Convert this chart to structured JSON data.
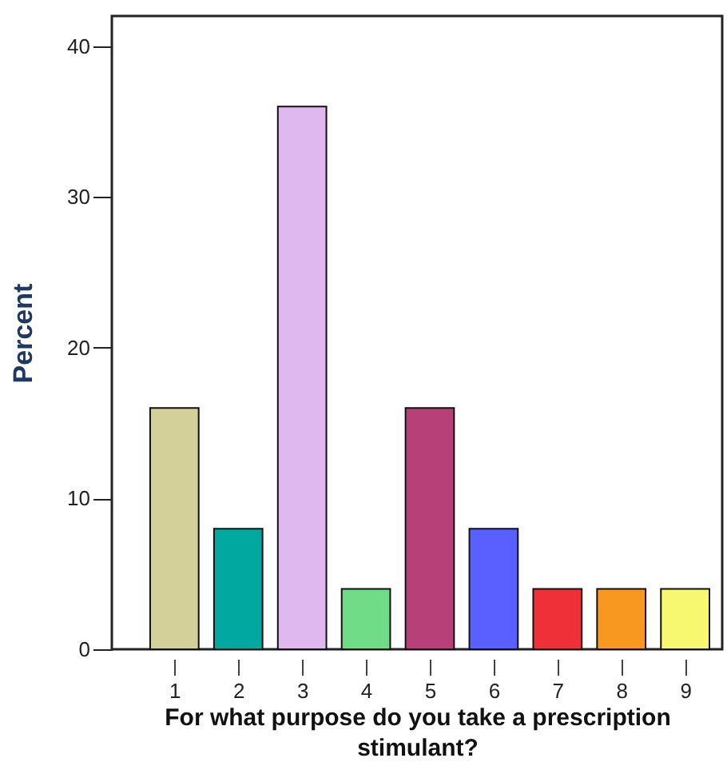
{
  "chart_data": {
    "type": "bar",
    "xlabel": "For what purpose do you take a prescription stimulant?",
    "ylabel": "Percent",
    "categories": [
      "1",
      "2",
      "3",
      "4",
      "5",
      "6",
      "7",
      "8",
      "9"
    ],
    "values": [
      16,
      8,
      36,
      4,
      16,
      8,
      4,
      4,
      4
    ],
    "colors": [
      "#d4d09a",
      "#00a8a0",
      "#e0b8f0",
      "#70dc88",
      "#b84078",
      "#5a60ff",
      "#f03038",
      "#f89820",
      "#f8f870"
    ],
    "ylim": [
      0,
      42
    ],
    "yticks": [
      0,
      10,
      20,
      30,
      40
    ],
    "grid": false
  }
}
